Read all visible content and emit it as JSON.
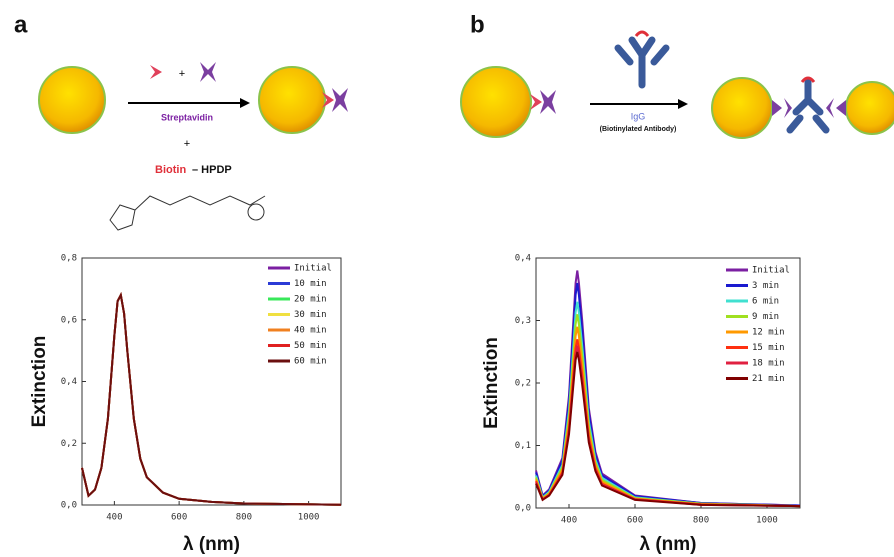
{
  "panels": [
    {
      "label": "a",
      "diagram": {
        "reagent_plus": "+",
        "arrow_label": "Streptavidin",
        "plus": "+",
        "biotin": "Biotin",
        "hpdp": "– HPDP"
      }
    },
    {
      "label": "b",
      "diagram": {
        "arrow_label": "IgG",
        "arrow_sublabel": "(Biotinylated Antibody)"
      }
    }
  ],
  "chart_data": [
    {
      "type": "line",
      "xlabel": "λ (nm)",
      "ylabel": "Extinction",
      "legend": "upper right",
      "x": [
        300,
        320,
        340,
        360,
        380,
        400,
        410,
        420,
        430,
        440,
        460,
        480,
        500,
        550,
        600,
        700,
        800,
        1100
      ],
      "xlim": [
        300,
        1100
      ],
      "xticks": [
        400,
        600,
        800,
        1000
      ],
      "ylim": [
        0,
        0.8
      ],
      "yticks": [
        {
          "value": 0,
          "label": "0,0"
        },
        {
          "value": 0.2,
          "label": "0,2"
        },
        {
          "value": 0.4,
          "label": "0,4"
        },
        {
          "value": 0.6,
          "label": "0,6"
        },
        {
          "value": 0.8,
          "label": "0,8"
        }
      ],
      "series": [
        {
          "name": "Initial",
          "color": "#7b1fa2",
          "values": [
            0.12,
            0.03,
            0.05,
            0.12,
            0.28,
            0.55,
            0.66,
            0.68,
            0.62,
            0.5,
            0.28,
            0.15,
            0.09,
            0.04,
            0.02,
            0.01,
            0.005,
            0.001
          ]
        },
        {
          "name": "10 min",
          "color": "#2b3bd6",
          "values": [
            0.12,
            0.03,
            0.05,
            0.12,
            0.28,
            0.55,
            0.66,
            0.68,
            0.62,
            0.5,
            0.28,
            0.15,
            0.09,
            0.04,
            0.02,
            0.01,
            0.005,
            0.001
          ]
        },
        {
          "name": "20 min",
          "color": "#38e85a",
          "values": [
            0.12,
            0.03,
            0.05,
            0.12,
            0.28,
            0.55,
            0.66,
            0.68,
            0.62,
            0.5,
            0.28,
            0.15,
            0.09,
            0.04,
            0.02,
            0.01,
            0.005,
            0.001
          ]
        },
        {
          "name": "30 min",
          "color": "#f0e040",
          "values": [
            0.12,
            0.03,
            0.05,
            0.12,
            0.28,
            0.55,
            0.66,
            0.68,
            0.62,
            0.5,
            0.28,
            0.15,
            0.09,
            0.04,
            0.02,
            0.01,
            0.005,
            0.001
          ]
        },
        {
          "name": "40 min",
          "color": "#f08020",
          "values": [
            0.12,
            0.03,
            0.05,
            0.12,
            0.28,
            0.55,
            0.66,
            0.68,
            0.62,
            0.5,
            0.28,
            0.15,
            0.09,
            0.04,
            0.02,
            0.01,
            0.005,
            0.001
          ]
        },
        {
          "name": "50 min",
          "color": "#e02020",
          "values": [
            0.12,
            0.03,
            0.05,
            0.12,
            0.28,
            0.55,
            0.66,
            0.68,
            0.62,
            0.5,
            0.28,
            0.15,
            0.09,
            0.04,
            0.02,
            0.01,
            0.005,
            0.001
          ]
        },
        {
          "name": "60 min",
          "color": "#6b0f0f",
          "values": [
            0.12,
            0.03,
            0.05,
            0.12,
            0.28,
            0.55,
            0.66,
            0.68,
            0.62,
            0.5,
            0.28,
            0.15,
            0.09,
            0.04,
            0.02,
            0.01,
            0.005,
            0.001
          ]
        }
      ]
    },
    {
      "type": "line",
      "xlabel": "λ (nm)",
      "ylabel": "Extinction",
      "legend": "upper right",
      "x": [
        300,
        320,
        340,
        380,
        400,
        420,
        425,
        430,
        440,
        460,
        480,
        500,
        600,
        800,
        1100
      ],
      "xlim": [
        300,
        1100
      ],
      "xticks": [
        400,
        600,
        800,
        1000
      ],
      "ylim": [
        0,
        0.4
      ],
      "yticks": [
        {
          "value": 0,
          "label": "0,0"
        },
        {
          "value": 0.1,
          "label": "0,1"
        },
        {
          "value": 0.2,
          "label": "0,2"
        },
        {
          "value": 0.3,
          "label": "0,3"
        },
        {
          "value": 0.4,
          "label": "0,4"
        }
      ],
      "series": [
        {
          "name": "Initial",
          "color": "#7b1fa2",
          "values": [
            0.06,
            0.02,
            0.03,
            0.08,
            0.18,
            0.36,
            0.38,
            0.36,
            0.3,
            0.16,
            0.09,
            0.055,
            0.02,
            0.008,
            0.004
          ]
        },
        {
          "name": "3 min",
          "color": "#1a1acf",
          "values": [
            0.057,
            0.019,
            0.028,
            0.076,
            0.17,
            0.341,
            0.36,
            0.341,
            0.284,
            0.152,
            0.085,
            0.052,
            0.019,
            0.008,
            0.004
          ]
        },
        {
          "name": "6 min",
          "color": "#40e0d0",
          "values": [
            0.052,
            0.017,
            0.026,
            0.069,
            0.156,
            0.313,
            0.33,
            0.313,
            0.26,
            0.139,
            0.078,
            0.048,
            0.017,
            0.007,
            0.003
          ]
        },
        {
          "name": "9 min",
          "color": "#a0e020",
          "values": [
            0.049,
            0.016,
            0.024,
            0.065,
            0.147,
            0.294,
            0.31,
            0.294,
            0.245,
            0.131,
            0.073,
            0.045,
            0.016,
            0.007,
            0.003
          ]
        },
        {
          "name": "12 min",
          "color": "#ff9900",
          "values": [
            0.046,
            0.015,
            0.023,
            0.061,
            0.137,
            0.275,
            0.29,
            0.275,
            0.229,
            0.122,
            0.069,
            0.042,
            0.015,
            0.006,
            0.003
          ]
        },
        {
          "name": "15 min",
          "color": "#ff3010",
          "values": [
            0.043,
            0.014,
            0.021,
            0.057,
            0.128,
            0.256,
            0.27,
            0.256,
            0.213,
            0.114,
            0.064,
            0.039,
            0.014,
            0.006,
            0.003
          ]
        },
        {
          "name": "18 min",
          "color": "#e02040",
          "values": [
            0.041,
            0.014,
            0.021,
            0.055,
            0.123,
            0.246,
            0.26,
            0.246,
            0.205,
            0.109,
            0.062,
            0.038,
            0.014,
            0.005,
            0.003
          ]
        },
        {
          "name": "21 min",
          "color": "#800000",
          "values": [
            0.039,
            0.013,
            0.02,
            0.053,
            0.118,
            0.237,
            0.25,
            0.237,
            0.197,
            0.105,
            0.059,
            0.036,
            0.013,
            0.005,
            0.003
          ]
        }
      ]
    }
  ]
}
